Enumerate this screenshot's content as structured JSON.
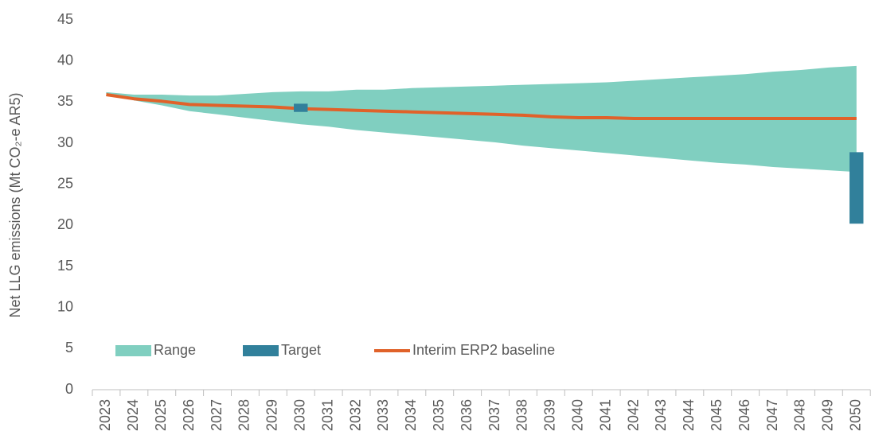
{
  "chart_data": {
    "type": "line",
    "ylabel": "Net LLG emissions (Mt CO₂-e AR5)",
    "categories": [
      "2023",
      "2024",
      "2025",
      "2026",
      "2027",
      "2028",
      "2029",
      "2030",
      "2031",
      "2032",
      "2033",
      "2034",
      "2035",
      "2036",
      "2037",
      "2038",
      "2039",
      "2040",
      "2041",
      "2042",
      "2043",
      "2044",
      "2045",
      "2046",
      "2047",
      "2048",
      "2049",
      "2050"
    ],
    "ylim": [
      0,
      45
    ],
    "yticks": [
      0,
      5,
      10,
      15,
      20,
      25,
      30,
      35,
      40,
      45
    ],
    "grid": false,
    "legend": "bottom-left",
    "series": [
      {
        "name": "Range",
        "style": "band",
        "color": "#80cfc0",
        "low": [
          36.0,
          35.2,
          34.6,
          33.9,
          33.5,
          33.1,
          32.7,
          32.3,
          32.0,
          31.6,
          31.3,
          31.0,
          30.7,
          30.4,
          30.1,
          29.7,
          29.4,
          29.1,
          28.8,
          28.5,
          28.2,
          27.9,
          27.6,
          27.4,
          27.1,
          26.9,
          26.7,
          26.5
        ],
        "high": [
          36.2,
          35.9,
          35.9,
          35.8,
          35.8,
          36.0,
          36.2,
          36.3,
          36.3,
          36.5,
          36.5,
          36.7,
          36.8,
          36.9,
          37.0,
          37.1,
          37.2,
          37.3,
          37.4,
          37.6,
          37.8,
          38.0,
          38.2,
          38.4,
          38.7,
          38.9,
          39.2,
          39.4
        ]
      },
      {
        "name": "Target",
        "style": "floating-bar",
        "color": "#31809b",
        "low": [
          null,
          null,
          null,
          null,
          null,
          null,
          null,
          33.8,
          null,
          null,
          null,
          null,
          null,
          null,
          null,
          null,
          null,
          null,
          null,
          null,
          null,
          null,
          null,
          null,
          null,
          null,
          null,
          20.2
        ],
        "high": [
          null,
          null,
          null,
          null,
          null,
          null,
          null,
          34.8,
          null,
          null,
          null,
          null,
          null,
          null,
          null,
          null,
          null,
          null,
          null,
          null,
          null,
          null,
          null,
          null,
          null,
          null,
          null,
          28.9
        ]
      },
      {
        "name": "Interim ERP2 baseline",
        "style": "line",
        "color": "#e0622a",
        "values": [
          35.9,
          35.4,
          35.1,
          34.7,
          34.6,
          34.5,
          34.4,
          34.2,
          34.1,
          34.0,
          33.9,
          33.8,
          33.7,
          33.6,
          33.5,
          33.4,
          33.2,
          33.1,
          33.1,
          33.0,
          33.0,
          33.0,
          33.0,
          33.0,
          33.0,
          33.0,
          33.0,
          33.0
        ]
      }
    ]
  }
}
